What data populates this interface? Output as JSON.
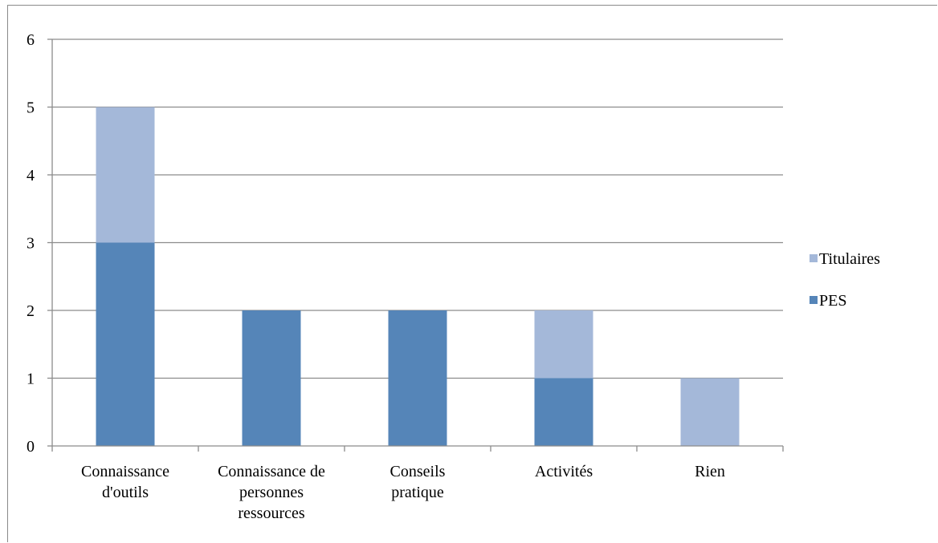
{
  "chart_data": {
    "type": "bar",
    "stacked": true,
    "categories": [
      [
        "Connaissance",
        "d'outils"
      ],
      [
        "Connaissance de",
        "personnes",
        "ressources"
      ],
      [
        "Conseils",
        "pratique"
      ],
      [
        "Activités"
      ],
      [
        "Rien"
      ]
    ],
    "series": [
      {
        "name": "PES",
        "values": [
          3,
          2,
          2,
          1,
          0
        ],
        "color": "#5585b8"
      },
      {
        "name": "Titulaires",
        "values": [
          2,
          0,
          0,
          1,
          1
        ],
        "color": "#a4b8d9"
      }
    ],
    "ylim": [
      0,
      6
    ],
    "yticks": [
      0,
      1,
      2,
      3,
      4,
      5,
      6
    ],
    "grid": true,
    "legend": "right"
  }
}
